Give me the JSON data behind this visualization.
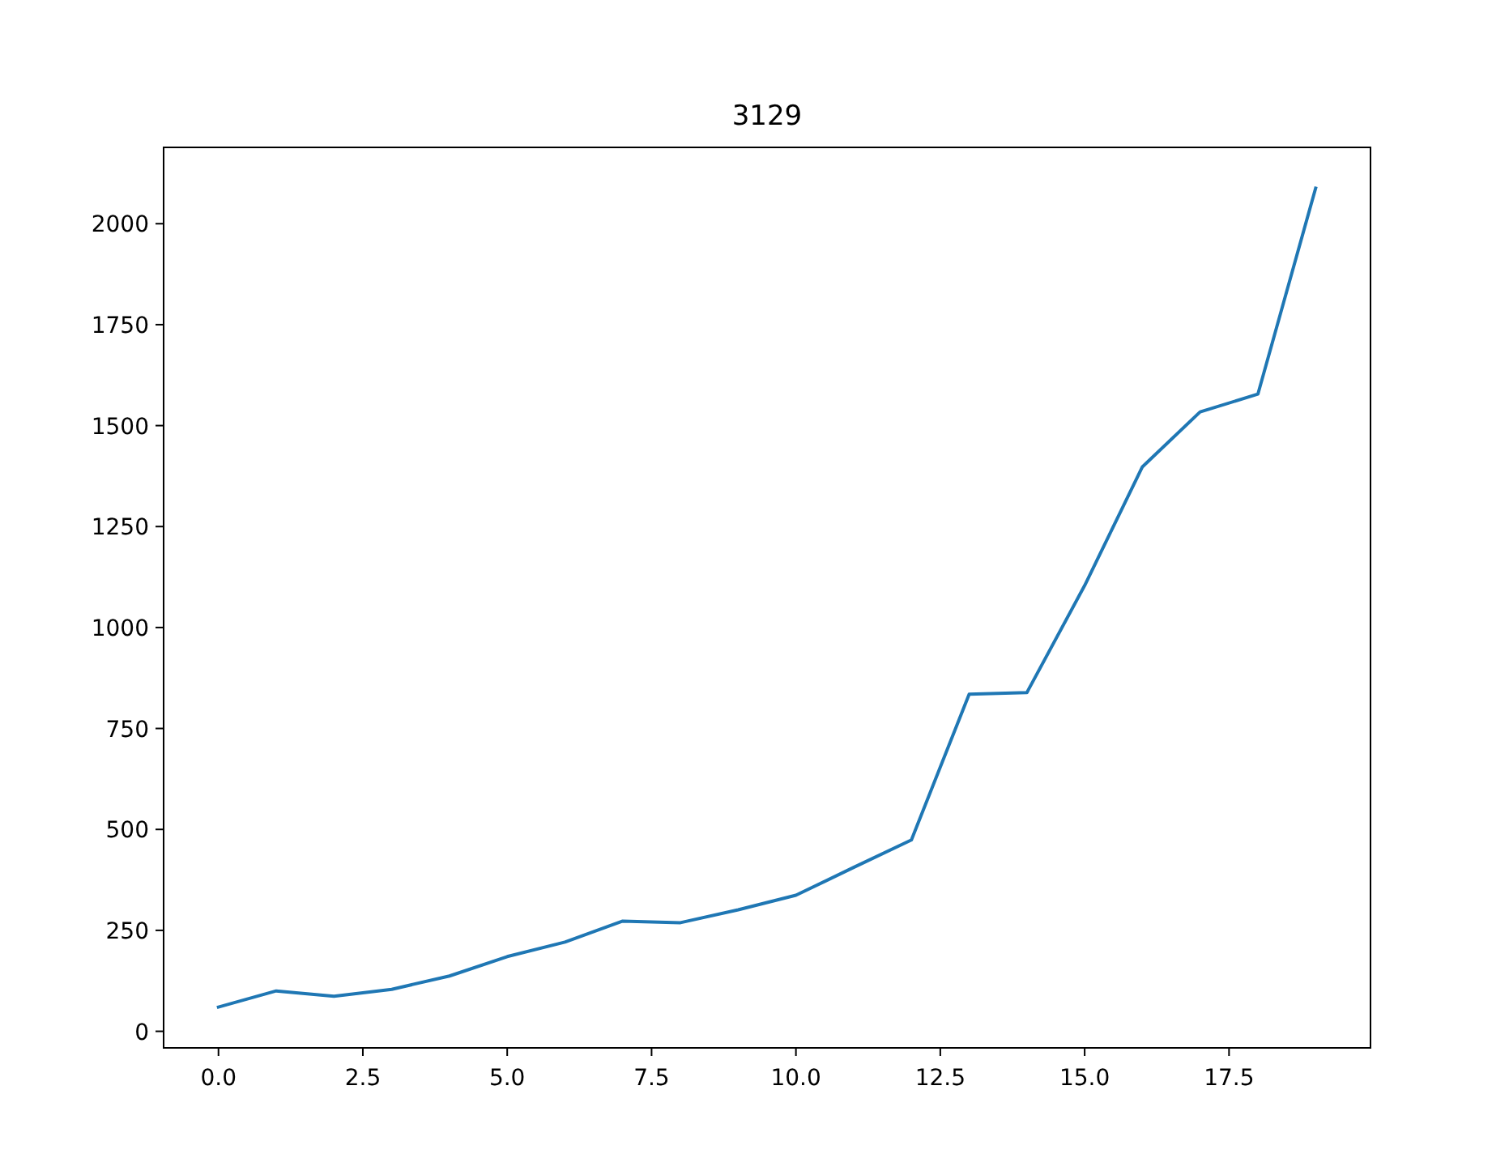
{
  "chart_data": {
    "type": "line",
    "title": "3129",
    "x": [
      0,
      1,
      2,
      3,
      4,
      5,
      6,
      7,
      8,
      9,
      10,
      11,
      12,
      13,
      14,
      15,
      16,
      17,
      18,
      19
    ],
    "series": [
      {
        "color": "#1f77b4",
        "values": [
          60,
          100,
          87,
          104,
          137,
          185,
          221,
          273,
          269,
          301,
          337,
          406,
          474,
          835,
          839,
          1104,
          1398,
          1534,
          1578,
          2088
        ]
      }
    ],
    "xlim": [
      -0.95,
      19.95
    ],
    "xticks": [
      {
        "value": 0,
        "label": "0.0"
      },
      {
        "value": 2.5,
        "label": "2.5"
      },
      {
        "value": 5,
        "label": "5.0"
      },
      {
        "value": 7.5,
        "label": "7.5"
      },
      {
        "value": 10,
        "label": "10.0"
      },
      {
        "value": 12.5,
        "label": "12.5"
      },
      {
        "value": 15,
        "label": "15.0"
      },
      {
        "value": 17.5,
        "label": "17.5"
      }
    ],
    "ylim": [
      -41,
      2189
    ],
    "yticks": [
      0,
      250,
      500,
      750,
      1000,
      1250,
      1500,
      1750,
      2000
    ]
  }
}
